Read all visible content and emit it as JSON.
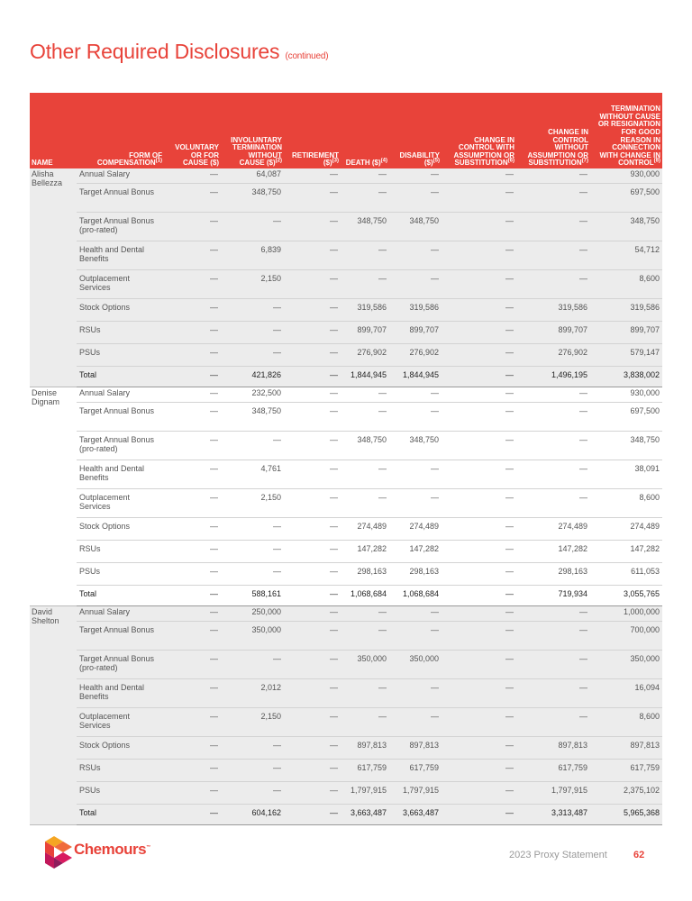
{
  "header": {
    "title": "Other Required Disclosures",
    "subtitle": "(continued)"
  },
  "table": {
    "columns": [
      {
        "text": "NAME"
      },
      {
        "text": "FORM OF COMPENSATION",
        "note": "(1)"
      },
      {
        "text": "VOLUNTARY OR FOR CAUSE ($)"
      },
      {
        "text": "INVOLUNTARY TERMINATION WITHOUT CAUSE ($)",
        "note": "(2)"
      },
      {
        "text": "RETIREMENT ($)",
        "note": "(3)"
      },
      {
        "text": "DEATH ($)",
        "note": "(4)"
      },
      {
        "text": "DISABILITY ($)",
        "note": "(5)"
      },
      {
        "text": "CHANGE IN CONTROL WITH ASSUMPTION OR SUBSTITUTION",
        "note": "(6)"
      },
      {
        "text": "CHANGE IN CONTROL WITHOUT ASSUMPTION OR SUBSTITUTION",
        "note": "(7)"
      },
      {
        "text": "TERMINATION WITHOUT CAUSE OR RESIGNATION FOR GOOD REASON IN CONNECTION WITH CHANGE IN CONTROL",
        "note": "(8)"
      }
    ],
    "groups": [
      {
        "name": "Alisha Bellezza",
        "rows": [
          [
            "Annual Salary",
            "—",
            "64,087",
            "—",
            "—",
            "—",
            "—",
            "—",
            "930,000"
          ],
          [
            "Target Annual Bonus",
            "—",
            "348,750",
            "—",
            "—",
            "—",
            "—",
            "—",
            "697,500"
          ],
          [
            "Target Annual Bonus (pro-rated)",
            "—",
            "—",
            "—",
            "348,750",
            "348,750",
            "—",
            "—",
            "348,750"
          ],
          [
            "Health and Dental Benefits",
            "—",
            "6,839",
            "—",
            "—",
            "—",
            "—",
            "—",
            "54,712"
          ],
          [
            "Outplacement Services",
            "—",
            "2,150",
            "—",
            "—",
            "—",
            "—",
            "—",
            "8,600"
          ],
          [
            "Stock Options",
            "—",
            "—",
            "—",
            "319,586",
            "319,586",
            "—",
            "319,586",
            "319,586"
          ],
          [
            "RSUs",
            "—",
            "—",
            "—",
            "899,707",
            "899,707",
            "—",
            "899,707",
            "899,707"
          ],
          [
            "PSUs",
            "—",
            "—",
            "—",
            "276,902",
            "276,902",
            "—",
            "276,902",
            "579,147"
          ],
          [
            "Total",
            "—",
            "421,826",
            "—",
            "1,844,945",
            "1,844,945",
            "—",
            "1,496,195",
            "3,838,002"
          ]
        ]
      },
      {
        "name": "Denise Dignam",
        "rows": [
          [
            "Annual Salary",
            "—",
            "232,500",
            "—",
            "—",
            "—",
            "—",
            "—",
            "930,000"
          ],
          [
            "Target Annual Bonus",
            "—",
            "348,750",
            "—",
            "—",
            "—",
            "—",
            "—",
            "697,500"
          ],
          [
            "Target Annual Bonus (pro-rated)",
            "—",
            "—",
            "—",
            "348,750",
            "348,750",
            "—",
            "—",
            "348,750"
          ],
          [
            "Health and Dental Benefits",
            "—",
            "4,761",
            "—",
            "—",
            "—",
            "—",
            "—",
            "38,091"
          ],
          [
            "Outplacement Services",
            "—",
            "2,150",
            "—",
            "—",
            "—",
            "—",
            "—",
            "8,600"
          ],
          [
            "Stock Options",
            "—",
            "—",
            "—",
            "274,489",
            "274,489",
            "—",
            "274,489",
            "274,489"
          ],
          [
            "RSUs",
            "—",
            "—",
            "—",
            "147,282",
            "147,282",
            "—",
            "147,282",
            "147,282"
          ],
          [
            "PSUs",
            "—",
            "—",
            "—",
            "298,163",
            "298,163",
            "—",
            "298,163",
            "611,053"
          ],
          [
            "Total",
            "—",
            "588,161",
            "—",
            "1,068,684",
            "1,068,684",
            "—",
            "719,934",
            "3,055,765"
          ]
        ]
      },
      {
        "name": "David Shelton",
        "rows": [
          [
            "Annual Salary",
            "—",
            "250,000",
            "—",
            "—",
            "—",
            "—",
            "—",
            "1,000,000"
          ],
          [
            "Target Annual Bonus",
            "—",
            "350,000",
            "—",
            "—",
            "—",
            "—",
            "—",
            "700,000"
          ],
          [
            "Target Annual Bonus (pro-rated)",
            "—",
            "—",
            "—",
            "350,000",
            "350,000",
            "—",
            "—",
            "350,000"
          ],
          [
            "Health and Dental Benefits",
            "—",
            "2,012",
            "—",
            "—",
            "—",
            "—",
            "—",
            "16,094"
          ],
          [
            "Outplacement Services",
            "—",
            "2,150",
            "—",
            "—",
            "—",
            "—",
            "—",
            "8,600"
          ],
          [
            "Stock Options",
            "—",
            "—",
            "—",
            "897,813",
            "897,813",
            "—",
            "897,813",
            "897,813"
          ],
          [
            "RSUs",
            "—",
            "—",
            "—",
            "617,759",
            "617,759",
            "—",
            "617,759",
            "617,759"
          ],
          [
            "PSUs",
            "—",
            "—",
            "—",
            "1,797,915",
            "1,797,915",
            "—",
            "1,797,915",
            "2,375,102"
          ],
          [
            "Total",
            "—",
            "604,162",
            "—",
            "3,663,487",
            "3,663,487",
            "—",
            "3,313,487",
            "5,965,368"
          ]
        ]
      }
    ]
  },
  "footer": {
    "brand": "Chemours",
    "trademark": "™",
    "document": "2023 Proxy Statement",
    "page": "62"
  }
}
